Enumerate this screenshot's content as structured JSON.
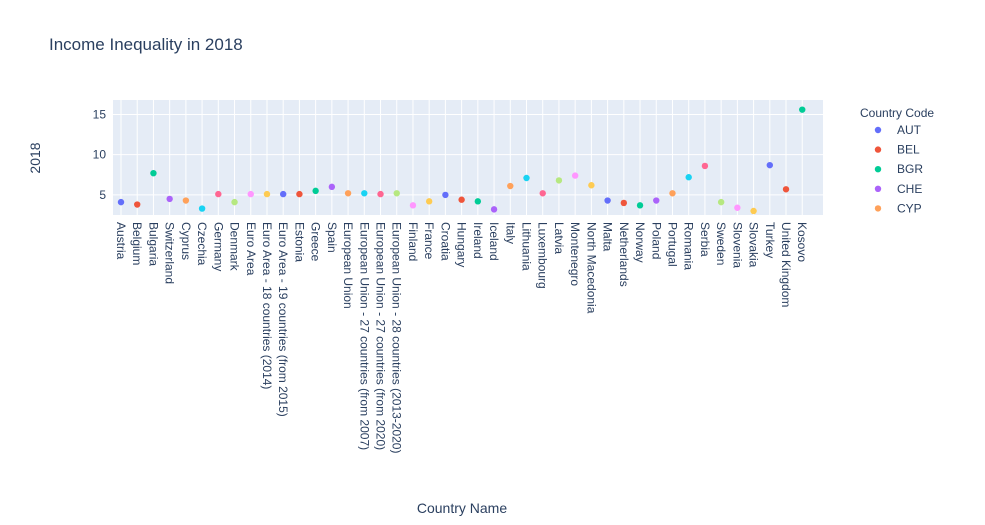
{
  "chart_data": {
    "type": "scatter",
    "title": "Income Inequality in 2018",
    "xlabel": "Country Name",
    "ylabel": "2018",
    "ylim": [
      2.5,
      16.8
    ],
    "y_ticks": [
      5,
      10,
      15
    ],
    "grid": true,
    "legend_title": "Country Code",
    "legend_position": "right",
    "colorway": [
      "#636efa",
      "#EF553B",
      "#00cc96",
      "#ab63fa",
      "#FFA15A",
      "#19d3f3",
      "#FF6692",
      "#B6E880",
      "#FF97FF",
      "#FECB52"
    ],
    "legend": [
      {
        "name": "AUT",
        "color": "#636efa"
      },
      {
        "name": "BEL",
        "color": "#EF553B"
      },
      {
        "name": "BGR",
        "color": "#00cc96"
      },
      {
        "name": "CHE",
        "color": "#ab63fa"
      },
      {
        "name": "CYP",
        "color": "#FFA15A"
      }
    ],
    "categories": [
      "Austria",
      "Belgium",
      "Bulgaria",
      "Switzerland",
      "Cyprus",
      "Czechia",
      "Germany",
      "Denmark",
      "Euro Area",
      "Euro Area - 18 countries (2014)",
      "Euro Area - 19 countries (from 2015)",
      "Estonia",
      "Greece",
      "Spain",
      "European Union",
      "European Union - 27 countries (from 2007)",
      "European Union - 27 countries (from 2020)",
      "European Union - 28 countries (2013-2020)",
      "Finland",
      "France",
      "Croatia",
      "Hungary",
      "Ireland",
      "Iceland",
      "Italy",
      "Lithuania",
      "Luxembourg",
      "Latvia",
      "Montenegro",
      "North Macedonia",
      "Malta",
      "Netherlands",
      "Norway",
      "Poland",
      "Portugal",
      "Romania",
      "Serbia",
      "Sweden",
      "Slovenia",
      "Slovakia",
      "Turkey",
      "United Kingdom",
      "Kosovo"
    ],
    "values": [
      4.1,
      3.8,
      7.7,
      4.5,
      4.3,
      3.3,
      5.1,
      4.1,
      5.1,
      5.1,
      5.1,
      5.1,
      5.5,
      6.0,
      5.2,
      5.2,
      5.1,
      5.2,
      3.7,
      4.2,
      5.0,
      4.4,
      4.2,
      3.2,
      6.1,
      7.1,
      5.2,
      6.8,
      7.4,
      6.2,
      4.3,
      4.0,
      3.7,
      4.3,
      5.2,
      7.2,
      8.6,
      4.1,
      3.4,
      3.0,
      8.7,
      5.7,
      15.6
    ]
  }
}
